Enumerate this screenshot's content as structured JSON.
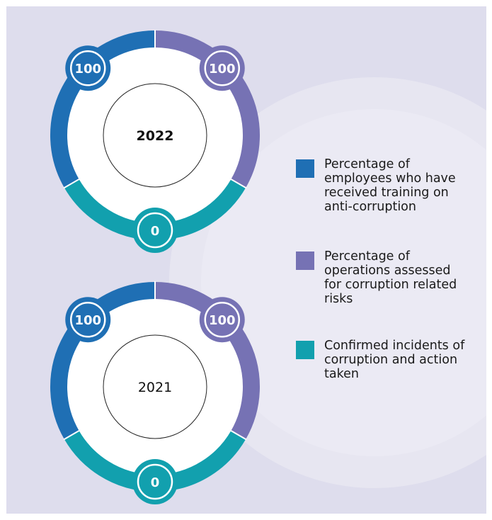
{
  "colors": {
    "employees_trained": "#1f6fb4",
    "operations_assessed": "#7672b4",
    "incidents": "#12a0ae",
    "background": "#dedded"
  },
  "chart_data": [
    {
      "type": "donut",
      "center_label": "2022",
      "center_bold": true,
      "series": [
        {
          "name": "Percentage of employees who have received training on anti-corruption",
          "value": 100
        },
        {
          "name": "Percentage of operations assessed for corruption related risks",
          "value": 100
        },
        {
          "name": "Confirmed incidents of corruption and action taken",
          "value": 0
        }
      ]
    },
    {
      "type": "donut",
      "center_label": "2021",
      "center_bold": false,
      "series": [
        {
          "name": "Percentage of employees who have received training on anti-corruption",
          "value": 100
        },
        {
          "name": "Percentage of operations assessed for corruption related risks",
          "value": 100
        },
        {
          "name": "Confirmed incidents of corruption and action taken",
          "value": 0
        }
      ]
    }
  ],
  "legend": {
    "items": [
      {
        "label": "Percentage of employees who have received training on anti-corruption",
        "color_key": "employees_trained"
      },
      {
        "label": "Percentage of operations assessed for corruption related risks",
        "color_key": "operations_assessed"
      },
      {
        "label": "Confirmed incidents of corruption and action taken",
        "color_key": "incidents"
      }
    ]
  }
}
